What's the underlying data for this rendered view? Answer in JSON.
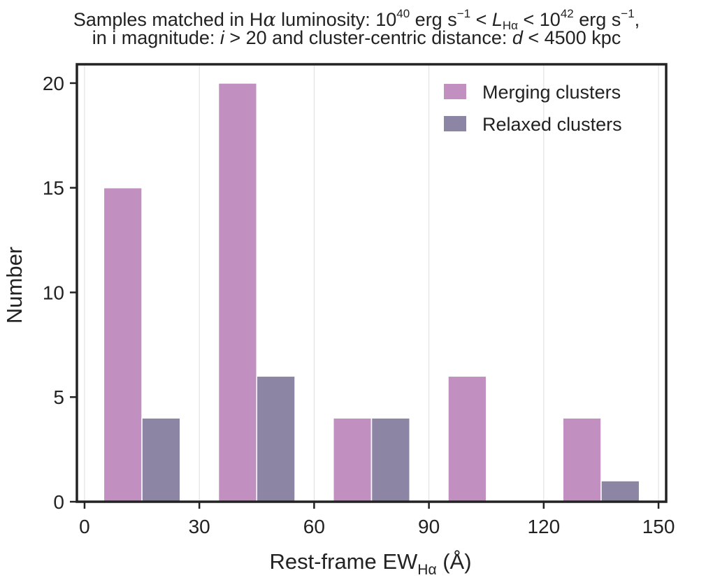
{
  "title": {
    "line1_prefix": "Samples matched in H",
    "alpha": "α",
    "line1_mid": " luminosity: 10",
    "exp1": "40",
    "unit1": " erg s",
    "neg1": "−1",
    "lt1": " < ",
    "L": "L",
    "L_sub": "Hα",
    "lt2": " < 10",
    "exp2": "42",
    "unit2": " erg s",
    "neg2": "−1",
    "line1_end": ",",
    "line2_prefix": "in i magnitude: ",
    "i_var": "i",
    "line2_mid": " > 20 and cluster-centric distance: ",
    "d_var": "d",
    "line2_end": " < 4500 kpc"
  },
  "colors": {
    "merging": "#c190c0",
    "relaxed": "#8c86a4",
    "axis": "#222222",
    "grid": "#dddddd"
  },
  "chart_data": {
    "type": "bar",
    "title": "Samples matched in Hα luminosity: 10^40 erg s^−1 < L_Hα < 10^42 erg s^−1, in i magnitude: i > 20 and cluster-centric distance: d < 4500 kpc",
    "xlabel": "Rest-frame EW",
    "xlabel_sub": "Hα",
    "xlabel_unit": " (Å)",
    "ylabel": "Number",
    "xlim": [
      -2,
      152
    ],
    "ylim": [
      0,
      20.9
    ],
    "xticks": [
      0,
      30,
      60,
      90,
      120,
      150
    ],
    "yticks": [
      0,
      5,
      10,
      15,
      20
    ],
    "grid": "vertical",
    "legend_position": "top-right",
    "series": [
      {
        "name": "Merging clusters",
        "color": "#c190c0",
        "bins": [
          {
            "x0": 5,
            "x1": 15,
            "value": 15
          },
          {
            "x0": 35,
            "x1": 45,
            "value": 20
          },
          {
            "x0": 65,
            "x1": 75,
            "value": 4
          },
          {
            "x0": 95,
            "x1": 105,
            "value": 6
          },
          {
            "x0": 125,
            "x1": 135,
            "value": 4
          }
        ]
      },
      {
        "name": "Relaxed clusters",
        "color": "#8c86a4",
        "bins": [
          {
            "x0": 15,
            "x1": 25,
            "value": 4
          },
          {
            "x0": 45,
            "x1": 55,
            "value": 6
          },
          {
            "x0": 75,
            "x1": 85,
            "value": 4
          },
          {
            "x0": 105,
            "x1": 115,
            "value": 0
          },
          {
            "x0": 135,
            "x1": 145,
            "value": 1
          }
        ]
      }
    ]
  }
}
